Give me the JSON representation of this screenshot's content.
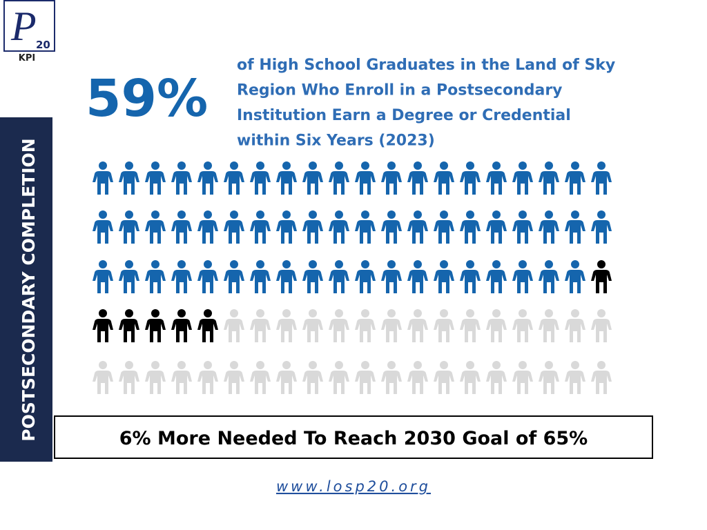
{
  "chart_data": {
    "type": "pictogram",
    "logo": {
      "mark": "P",
      "number": "20",
      "caption": "KPI"
    },
    "side_label": "POSTSECONDARY COMPLETION",
    "value_labels": [
      "59%",
      null,
      null
    ],
    "description": [
      "of High School Graduates in the Land of Sky",
      "Region Who Enroll in a Postsecondary",
      "Institution Earn a Degree or Credential",
      "within Six Years (2023)"
    ],
    "values": [
      59,
      6,
      35
    ],
    "colors": [
      "#1565ad",
      "#000000",
      "#d9d9d9"
    ],
    "note": "6% More Needed To Reach 2030 Goal of 65%",
    "footer": "www.losp20.org"
  }
}
